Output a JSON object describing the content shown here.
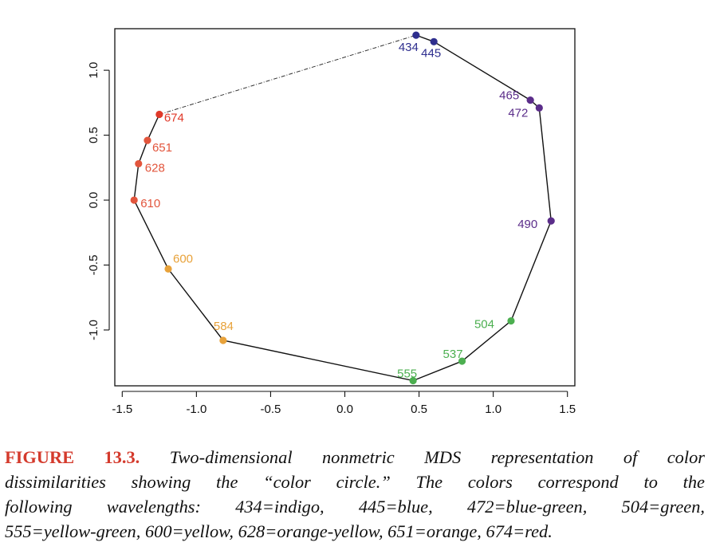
{
  "chart_data": {
    "type": "scatter",
    "title": "",
    "xlabel": "",
    "ylabel": "",
    "xlim": [
      -1.55,
      1.55
    ],
    "ylim": [
      -1.43,
      1.32
    ],
    "x_ticks": [
      "-1.5",
      "-1.0",
      "-0.5",
      "0.0",
      "0.5",
      "1.0",
      "1.5"
    ],
    "y_ticks": [
      "-1.0",
      "-0.5",
      "0.0",
      "0.5",
      "1.0"
    ],
    "grid": false,
    "connecting_line": "polygon-order, dashed segment between 434 and 674",
    "points": [
      {
        "label": "434",
        "x": 0.48,
        "y": 1.27,
        "color": "#2e2e8e"
      },
      {
        "label": "445",
        "x": 0.6,
        "y": 1.22,
        "color": "#2e2e8e"
      },
      {
        "label": "465",
        "x": 1.25,
        "y": 0.77,
        "color": "#5b2d8a"
      },
      {
        "label": "472",
        "x": 1.31,
        "y": 0.71,
        "color": "#5b2d8a"
      },
      {
        "label": "490",
        "x": 1.39,
        "y": -0.16,
        "color": "#5b2d8a"
      },
      {
        "label": "504",
        "x": 1.12,
        "y": -0.93,
        "color": "#4caf50"
      },
      {
        "label": "537",
        "x": 0.79,
        "y": -1.24,
        "color": "#4caf50"
      },
      {
        "label": "555",
        "x": 0.46,
        "y": -1.39,
        "color": "#4caf50"
      },
      {
        "label": "584",
        "x": -0.82,
        "y": -1.08,
        "color": "#e8a23a"
      },
      {
        "label": "600",
        "x": -1.19,
        "y": -0.53,
        "color": "#e8a23a"
      },
      {
        "label": "610",
        "x": -1.42,
        "y": 0.0,
        "color": "#e2553c"
      },
      {
        "label": "628",
        "x": -1.39,
        "y": 0.28,
        "color": "#e2553c"
      },
      {
        "label": "651",
        "x": -1.33,
        "y": 0.46,
        "color": "#e2553c"
      },
      {
        "label": "674",
        "x": -1.25,
        "y": 0.66,
        "color": "#e03a2a"
      }
    ]
  },
  "caption": {
    "label": "FIGURE 13.3.",
    "lines": [
      "Two-dimensional nonmetric MDS representation of color",
      "dissimilarities showing the “color circle.” The colors correspond to the",
      "following wavelengths: 434=indigo, 445=blue, 472=blue-green, 504=green,",
      "555=yellow-green, 600=yellow, 628=orange-yellow, 651=orange, 674=red."
    ]
  }
}
